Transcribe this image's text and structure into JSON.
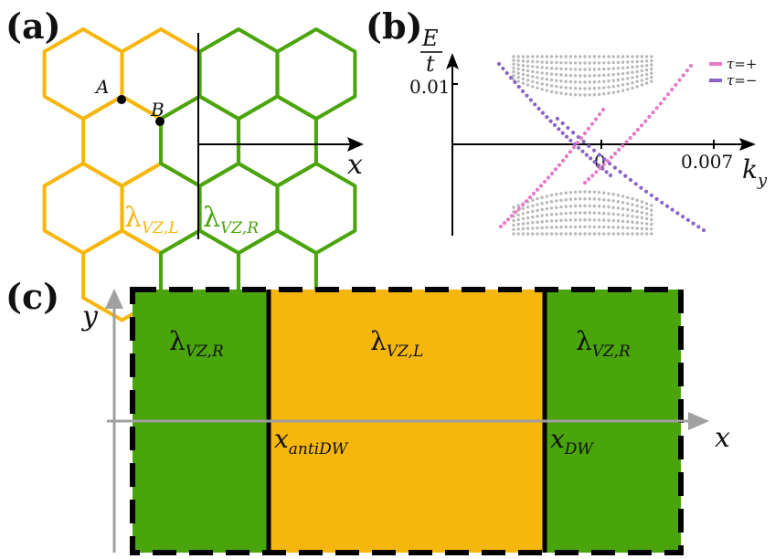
{
  "colors": {
    "orange": "#f5b60e",
    "green": "#4aa40c",
    "pink": "#e67ac8",
    "purple": "#8a63c8",
    "gray": "#b9b9b9",
    "axis": "#a0a0a0",
    "black": "#000000"
  },
  "panel_a": {
    "label": "(a)",
    "point_a": "A",
    "point_b": "B",
    "axis_x": "x",
    "lambda_left": {
      "base": "λ",
      "sub": "VZ,L"
    },
    "lambda_right": {
      "base": "λ",
      "sub": "VZ,R"
    }
  },
  "panel_b": {
    "label": "(b)",
    "ylabel_num": "E",
    "ylabel_den": "t",
    "xlabel": {
      "base": "k",
      "sub": "y"
    },
    "ytick": "0.01",
    "xtick_zero": "0",
    "xtick_right": "0.007",
    "legend_plus": "τ=+",
    "legend_minus": "τ=−"
  },
  "panel_c": {
    "label": "(c)",
    "axis_y": "y",
    "axis_x": "x",
    "region_left": {
      "base": "λ",
      "sub": "VZ,R"
    },
    "region_mid": {
      "base": "λ",
      "sub": "VZ,L"
    },
    "region_right": {
      "base": "λ",
      "sub": "VZ,R"
    },
    "anti_dw": {
      "base": "x",
      "sub": "antiDW"
    },
    "dw": {
      "base": "x",
      "sub": "DW"
    }
  }
}
